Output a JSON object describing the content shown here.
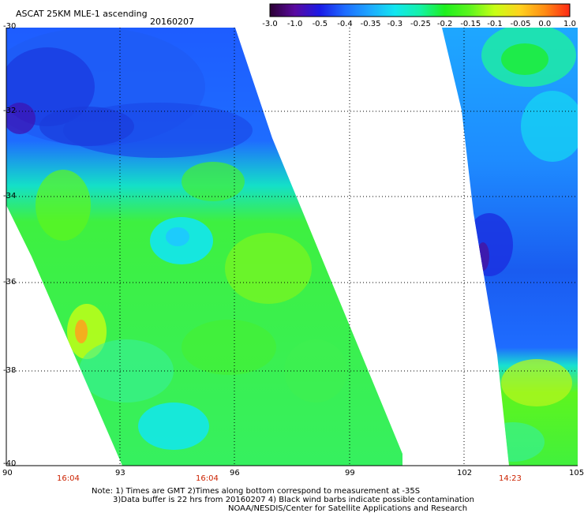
{
  "header": {
    "title": "ASCAT 25KM MLE-1 ascending",
    "date": "20160207"
  },
  "colorbar": {
    "labels": [
      "-3.0",
      "-1.0",
      "-0.5",
      "-0.4",
      "-0.35",
      "-0.3",
      "-0.25",
      "-0.2",
      "-0.15",
      "-0.1",
      "-0.05",
      "0.0",
      "1.0"
    ],
    "colors": [
      "#2b0033",
      "#5a0aa0",
      "#1a1ae6",
      "#1e6cff",
      "#1ea8ff",
      "#12e6f0",
      "#14f2a8",
      "#1ef01e",
      "#5ef51e",
      "#c8ff14",
      "#ffd21e",
      "#ff8c14",
      "#ff2814"
    ]
  },
  "map": {
    "lon_labels": [
      "90",
      "93",
      "96",
      "99",
      "102",
      "105"
    ],
    "lat_labels": [
      "-30",
      "-32",
      "-34",
      "-36",
      "-38",
      "-40"
    ],
    "time_labels": [
      "16:04",
      "16:04",
      "14:23"
    ]
  },
  "notes": {
    "line1": "Note: 1) Times are GMT 2)Times along bottom correspond to measurement at -35S",
    "line2": "3)Data buffer is 22 hrs from 20160207 4) Black wind barbs indicate possible contamination",
    "line3": "NOAA/NESDIS/Center for Satellite Applications and Research"
  }
}
